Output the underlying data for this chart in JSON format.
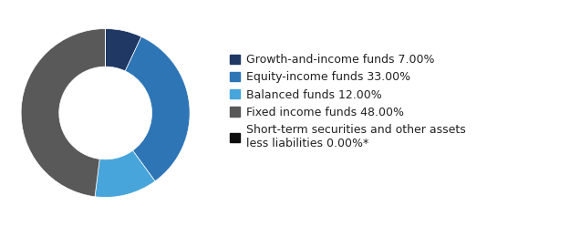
{
  "slices": [
    7.0,
    33.0,
    12.0,
    48.0,
    0.0001
  ],
  "colors": [
    "#1f3864",
    "#2e75b6",
    "#47a5db",
    "#595959",
    "#0d0d0d"
  ],
  "labels": [
    "Growth-and-income funds 7.00%",
    "Equity-income funds 33.00%",
    "Balanced funds 12.00%",
    "Fixed income funds 48.00%",
    "Short-term securities and other assets\nless liabilities 0.00%*"
  ],
  "legend_colors": [
    "#1f3864",
    "#2e75b6",
    "#47a5db",
    "#595959",
    "#0d0d0d"
  ],
  "background_color": "#ffffff",
  "start_angle": 90,
  "donut_width": 0.45,
  "legend_fontsize": 9.0
}
